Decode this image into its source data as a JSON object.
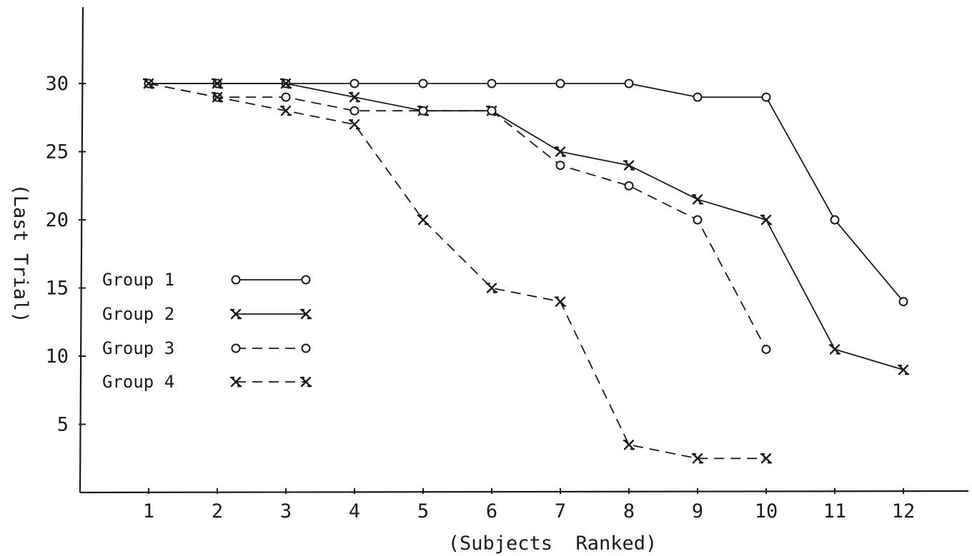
{
  "chart_data": {
    "type": "line",
    "title": "",
    "xlabel": "(Subjects  Ranked)",
    "ylabel": "(Last Trial)",
    "x": [
      1,
      2,
      3,
      4,
      5,
      6,
      7,
      8,
      9,
      10,
      11,
      12
    ],
    "x_ticks": [
      "1",
      "2",
      "3",
      "4",
      "5",
      "6",
      "7",
      "8",
      "9",
      "10",
      "11",
      "12"
    ],
    "y_ticks": [
      "5",
      "10",
      "15",
      "20",
      "25",
      "30"
    ],
    "xlim": [
      0,
      13.5
    ],
    "ylim": [
      0,
      36
    ],
    "grid": false,
    "legend_position": "left",
    "series": [
      {
        "name": "Group 1",
        "marker": "circle",
        "line_style": "solid",
        "values": [
          30,
          30,
          30,
          30,
          30,
          30,
          30,
          30,
          29,
          29,
          20,
          14
        ]
      },
      {
        "name": "Group 2",
        "marker": "x",
        "line_style": "solid",
        "values": [
          30,
          30,
          30,
          29,
          28,
          28,
          25,
          24,
          21.5,
          20,
          10.5,
          9
        ]
      },
      {
        "name": "Group 3",
        "marker": "circle",
        "line_style": "dashed",
        "values": [
          30,
          29,
          29,
          28,
          28,
          28,
          24,
          22.5,
          20,
          10.5,
          null,
          null
        ]
      },
      {
        "name": "Group 4",
        "marker": "x",
        "line_style": "dashed",
        "values": [
          30,
          29,
          28,
          27,
          20,
          15,
          14,
          3.5,
          2.5,
          2.5,
          null,
          null
        ]
      }
    ]
  }
}
